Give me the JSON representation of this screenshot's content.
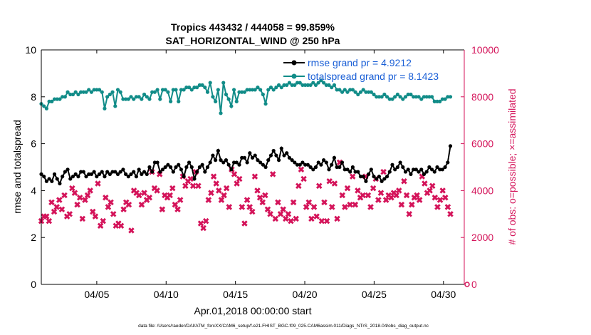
{
  "chart_data": {
    "type": "line",
    "title_line1": "Tropics 443432 / 444058 = 99.859%",
    "title_line2": "SAT_HORIZONTAL_WIND @ 250 hPa",
    "xlabel": "Apr.01,2018 00:00:00 start",
    "ylabel_left": "rmse and totalspread",
    "ylabel_right": "# of obs: o=possible; ×=assimilated",
    "footnote": "data file: /Users/raeder/DAI/ATM_forcXX/CAM6_setup/f.e21.FHIST_BGC.f09_025.CAM6assim.011/Diags_NTrS_2018-04/obs_diag_output.nc",
    "xlim": [
      1,
      31.5
    ],
    "ylim_left": [
      0,
      10
    ],
    "ylim_right": [
      0,
      10000
    ],
    "x_ticks": [
      5,
      10,
      15,
      20,
      25,
      30
    ],
    "x_tick_labels": [
      "04/05",
      "04/10",
      "04/15",
      "04/20",
      "04/25",
      "04/30"
    ],
    "y_ticks_left": [
      "0",
      "2",
      "4",
      "6",
      "8",
      "10"
    ],
    "y_ticks_right": [
      "0",
      "2000",
      "4000",
      "6000",
      "8000",
      "10000"
    ],
    "colors": {
      "rmse": "#000000",
      "spread": "#118c88",
      "obs": "#d4145a",
      "legend_text": "#1a5fd6"
    },
    "series": [
      {
        "name": "rmse grand pr = 4.9212",
        "axis": "left",
        "values": [
          4.7,
          4.6,
          4.4,
          4.5,
          4.4,
          4.7,
          4.5,
          4.3,
          4.6,
          4.8,
          4.9,
          4.5,
          4.6,
          4.7,
          4.6,
          4.8,
          4.8,
          4.6,
          4.7,
          4.7,
          4.8,
          4.6,
          4.7,
          4.8,
          4.6,
          4.8,
          4.7,
          4.8,
          4.8,
          4.7,
          4.8,
          4.9,
          4.7,
          4.6,
          4.7,
          4.8,
          4.6,
          4.9,
          4.7,
          4.8,
          4.7,
          5.0,
          4.8,
          5.2,
          5.2,
          4.8,
          4.9,
          5.0,
          5.1,
          5.0,
          4.8,
          5.0,
          5.1,
          4.9,
          4.6,
          5.0,
          5.2,
          5.0,
          4.5,
          4.8,
          5.0,
          5.1,
          4.8,
          5.0,
          5.2,
          5.5,
          5.3,
          5.7,
          5.3,
          5.2,
          5.3,
          5.1,
          4.9,
          5.2,
          5.2,
          5.1,
          5.4,
          5.4,
          5.2,
          5.6,
          5.4,
          5.5,
          5.3,
          5.2,
          5.1,
          5.0,
          5.3,
          5.5,
          5.7,
          5.5,
          5.3,
          5.8,
          5.5,
          5.6,
          5.4,
          5.3,
          5.2,
          5.1,
          5.1,
          5.2,
          5.1,
          5.1,
          5.0,
          4.9,
          5.0,
          5.2,
          5.1,
          5.3,
          5.2,
          4.9,
          5.1,
          5.4,
          5.0,
          5.0,
          5.2,
          4.9,
          4.9,
          4.8,
          5.0,
          4.8,
          4.8,
          4.6,
          4.6,
          4.4,
          4.7,
          4.9,
          4.6,
          4.5,
          4.6,
          4.4,
          4.5,
          4.6,
          4.8,
          5.1,
          4.9,
          5.0,
          5.2,
          5.0,
          4.8,
          4.9,
          4.7,
          4.9,
          4.9,
          4.8,
          4.9,
          4.7,
          4.8,
          5.0,
          4.9,
          4.8,
          5.0,
          4.9,
          4.9,
          5.0,
          5.2,
          5.9
        ],
        "marker": "dot"
      },
      {
        "name": "totalspread grand pr = 8.1423",
        "axis": "left",
        "values": [
          7.7,
          7.6,
          7.5,
          7.8,
          7.8,
          7.9,
          7.9,
          7.9,
          8.0,
          8.0,
          8.2,
          8.1,
          8.1,
          8.2,
          8.1,
          8.2,
          8.2,
          8.2,
          8.3,
          8.2,
          8.3,
          8.3,
          8.3,
          8.2,
          7.5,
          8.0,
          8.1,
          8.2,
          7.6,
          8.3,
          8.2,
          7.9,
          7.9,
          7.9,
          8.0,
          7.9,
          8.0,
          8.0,
          7.9,
          8.1,
          8.0,
          7.9,
          8.2,
          8.2,
          8.3,
          7.9,
          8.3,
          8.3,
          8.2,
          7.8,
          8.3,
          8.3,
          7.8,
          8.3,
          8.3,
          8.4,
          8.4,
          8.3,
          8.4,
          8.4,
          8.5,
          8.5,
          8.4,
          8.2,
          8.6,
          8.0,
          7.8,
          8.3,
          7.3,
          8.6,
          8.1,
          7.9,
          7.6,
          8.3,
          7.8,
          8.2,
          8.2,
          8.2,
          8.3,
          8.3,
          8.3,
          8.3,
          8.4,
          8.3,
          8.1,
          7.7,
          8.3,
          8.4,
          8.3,
          8.4,
          8.5,
          8.4,
          8.5,
          8.5,
          8.6,
          8.5,
          8.5,
          8.6,
          8.6,
          8.5,
          8.5,
          8.5,
          8.5,
          8.6,
          8.5,
          8.6,
          8.7,
          8.6,
          8.5,
          8.5,
          8.4,
          8.5,
          8.3,
          8.3,
          8.2,
          8.3,
          8.2,
          8.3,
          8.3,
          8.2,
          8.1,
          8.2,
          8.3,
          8.2,
          8.2,
          8.2,
          8.1,
          8.0,
          8.0,
          8.0,
          8.1,
          8.0,
          7.9,
          7.9,
          8.0,
          8.1,
          8.0,
          7.9,
          8.0,
          8.1,
          8.1,
          8.0,
          8.0,
          8.0,
          7.9,
          8.0,
          8.0,
          8.0,
          8.0,
          7.8,
          7.8,
          7.8,
          7.9,
          7.9,
          8.0,
          8.0
        ],
        "marker": "dot"
      },
      {
        "name": "obs assimilated",
        "axis": "right",
        "values": [
          2700,
          2900,
          2900,
          2700,
          3500,
          3100,
          3300,
          3600,
          3200,
          3800,
          2900,
          3000,
          4100,
          3900,
          3400,
          3700,
          2800,
          3600,
          3800,
          4000,
          3100,
          2900,
          4300,
          2500,
          2700,
          3700,
          3300,
          3500,
          3000,
          2500,
          2600,
          2500,
          3200,
          3500,
          3400,
          2300,
          4000,
          3900,
          3800,
          3400,
          3900,
          3600,
          3700,
          4800,
          4100,
          4000,
          4700,
          3200,
          3800,
          3700,
          3800,
          4100,
          3400,
          3200,
          3600,
          4600,
          4200,
          4400,
          4500,
          4200,
          4800,
          4200,
          2600,
          2400,
          2700,
          3600,
          3900,
          4600,
          4300,
          4000,
          3600,
          3800,
          4100,
          3300,
          4900,
          4700,
          4300,
          4500,
          3300,
          2600,
          3600,
          3300,
          3100,
          4600,
          4000,
          3700,
          3500,
          3800,
          3200,
          3000,
          4700,
          2800,
          3500,
          3000,
          3200,
          2800,
          3000,
          2700,
          3500,
          2800,
          4200,
          4900,
          4500,
          3300,
          3500,
          2800,
          3300,
          2900,
          4200,
          2700,
          3500,
          2700,
          4400,
          3300,
          4300,
          2800,
          5200,
          3800,
          3300,
          4100,
          3400,
          4600,
          3400,
          4000,
          3700,
          3800,
          4600,
          3800,
          3300,
          4100,
          4500,
          3600,
          3900,
          4800,
          3600,
          3800,
          3700,
          3900,
          3800,
          4000,
          3400,
          4400,
          3800,
          3000,
          3400,
          3700,
          3800,
          3600,
          4600,
          4300,
          3900,
          4000,
          4200,
          3700,
          3300,
          3600,
          4000,
          3700,
          3300,
          3000
        ],
        "marker": "x"
      },
      {
        "name": "obs possible",
        "axis": "right",
        "values": [
          0
        ],
        "marker": "o"
      }
    ]
  }
}
